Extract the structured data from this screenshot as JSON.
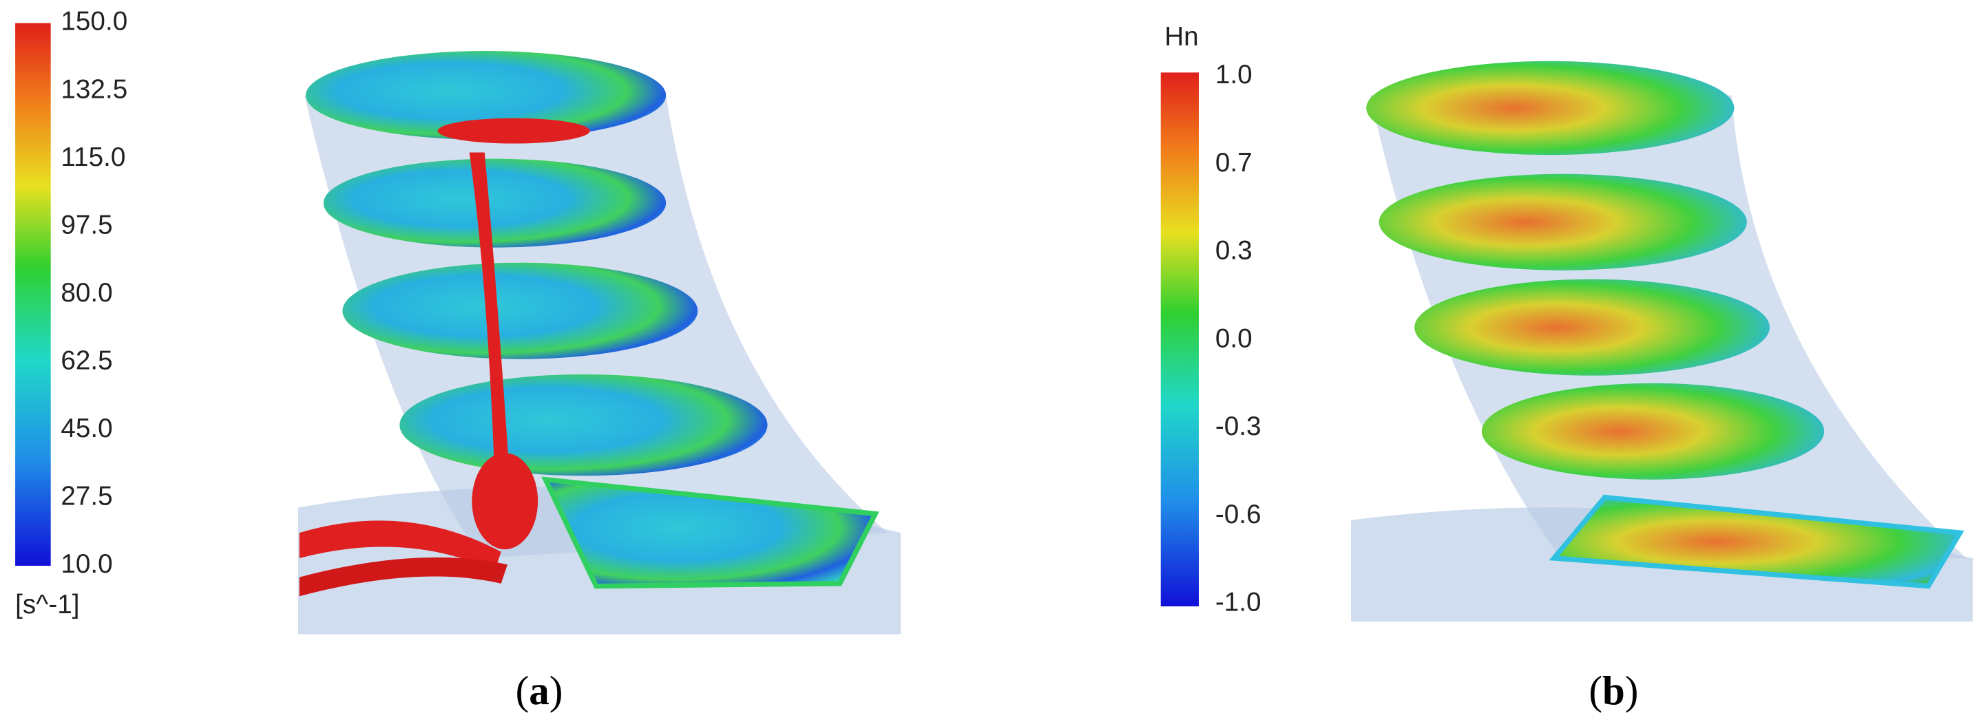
{
  "panels": [
    {
      "colorbar": {
        "labels": [
          "150.0",
          "132.5",
          "115.0",
          "97.5",
          "80.0",
          "62.5",
          "45.0",
          "27.5",
          "10.0"
        ],
        "unit": "[s^-1]"
      },
      "caption": [
        "(",
        "a",
        ")"
      ]
    },
    {
      "colorbar": {
        "title": "Hn",
        "labels": [
          "1.0",
          "0.7",
          "0.3",
          "0.0",
          "-0.3",
          "-0.6",
          "-1.0"
        ]
      },
      "caption": [
        "(",
        "b",
        ")"
      ]
    }
  ]
}
